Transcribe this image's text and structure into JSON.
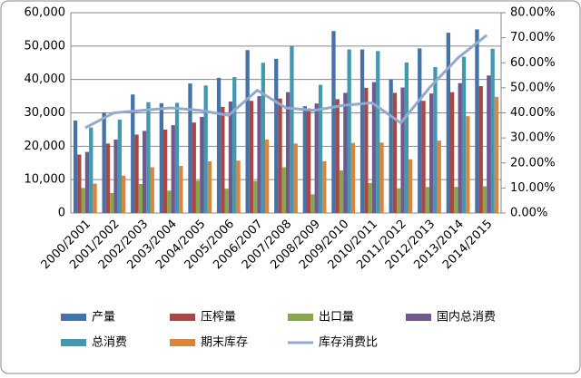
{
  "chart_data": {
    "type": "bar-line",
    "categories": [
      "2000/2001",
      "2001/2002",
      "2002/2003",
      "2003/2004",
      "2004/2005",
      "2005/2006",
      "2006/2007",
      "2007/2008",
      "2008/2009",
      "2009/2010",
      "2010/2011",
      "2011/2012",
      "2012/2013",
      "2013/2014",
      "2014/2015"
    ],
    "series": [
      {
        "name": "产量",
        "color": "#4572a7",
        "values": [
          27700,
          30000,
          35500,
          32900,
          38800,
          40500,
          48800,
          46200,
          32000,
          54500,
          49000,
          40000,
          49300,
          54000,
          55000
        ]
      },
      {
        "name": "压榨量",
        "color": "#aa4643",
        "values": [
          17500,
          20800,
          23500,
          25000,
          27100,
          31800,
          33600,
          34300,
          31300,
          34100,
          37500,
          36000,
          33600,
          36200,
          38000
        ]
      },
      {
        "name": "出口量",
        "color": "#89a54e",
        "values": [
          7500,
          6000,
          8700,
          6700,
          9700,
          7300,
          9600,
          13700,
          5600,
          12800,
          9000,
          7400,
          7800,
          7800,
          8000
        ]
      },
      {
        "name": "国内总消费",
        "color": "#71588f",
        "values": [
          18300,
          22000,
          24600,
          26300,
          28800,
          33400,
          35000,
          36200,
          32800,
          36000,
          39200,
          37600,
          35800,
          38900,
          41200
        ]
      },
      {
        "name": "总消费",
        "color": "#4198af",
        "values": [
          25600,
          28000,
          33200,
          33000,
          38200,
          40700,
          45000,
          50000,
          38400,
          49000,
          48500,
          45100,
          43700,
          46800,
          49200
        ]
      },
      {
        "name": "期末库存",
        "color": "#db843d",
        "values": [
          8800,
          11200,
          13700,
          14100,
          15500,
          15700,
          22000,
          20800,
          15500,
          21000,
          21100,
          16100,
          21700,
          29000,
          34800
        ]
      },
      {
        "name": "库存消费比",
        "color": "#93a9cf",
        "type": "line",
        "axis": "y2",
        "values": [
          34,
          40,
          41,
          42,
          41,
          39,
          49,
          42,
          41,
          43,
          44,
          36,
          50,
          62,
          71
        ]
      }
    ],
    "ylim": [
      0,
      60000
    ],
    "yticks": [
      0,
      {
        "value": 10000,
        "label": "10,000"
      },
      {
        "value": 20000,
        "label": "20,000"
      },
      {
        "value": 30000,
        "label": "30,000"
      },
      {
        "value": 40000,
        "label": "40,000"
      },
      {
        "value": 50000,
        "label": "50,000"
      },
      {
        "value": 60000,
        "label": "60,000"
      }
    ],
    "y2lim": [
      0,
      80
    ],
    "y2ticks": [
      {
        "value": 0,
        "label": "0.00%"
      },
      {
        "value": 10,
        "label": "10.00%"
      },
      {
        "value": 20,
        "label": "20.00%"
      },
      {
        "value": 30,
        "label": "30.00%"
      },
      {
        "value": 40,
        "label": "40.00%"
      },
      {
        "value": 50,
        "label": "50.00%"
      },
      {
        "value": 60,
        "label": "60.00%"
      },
      {
        "value": 70,
        "label": "70.00%"
      },
      {
        "value": 80,
        "label": "80.00%"
      }
    ],
    "grid": true,
    "legend": "bottom"
  }
}
